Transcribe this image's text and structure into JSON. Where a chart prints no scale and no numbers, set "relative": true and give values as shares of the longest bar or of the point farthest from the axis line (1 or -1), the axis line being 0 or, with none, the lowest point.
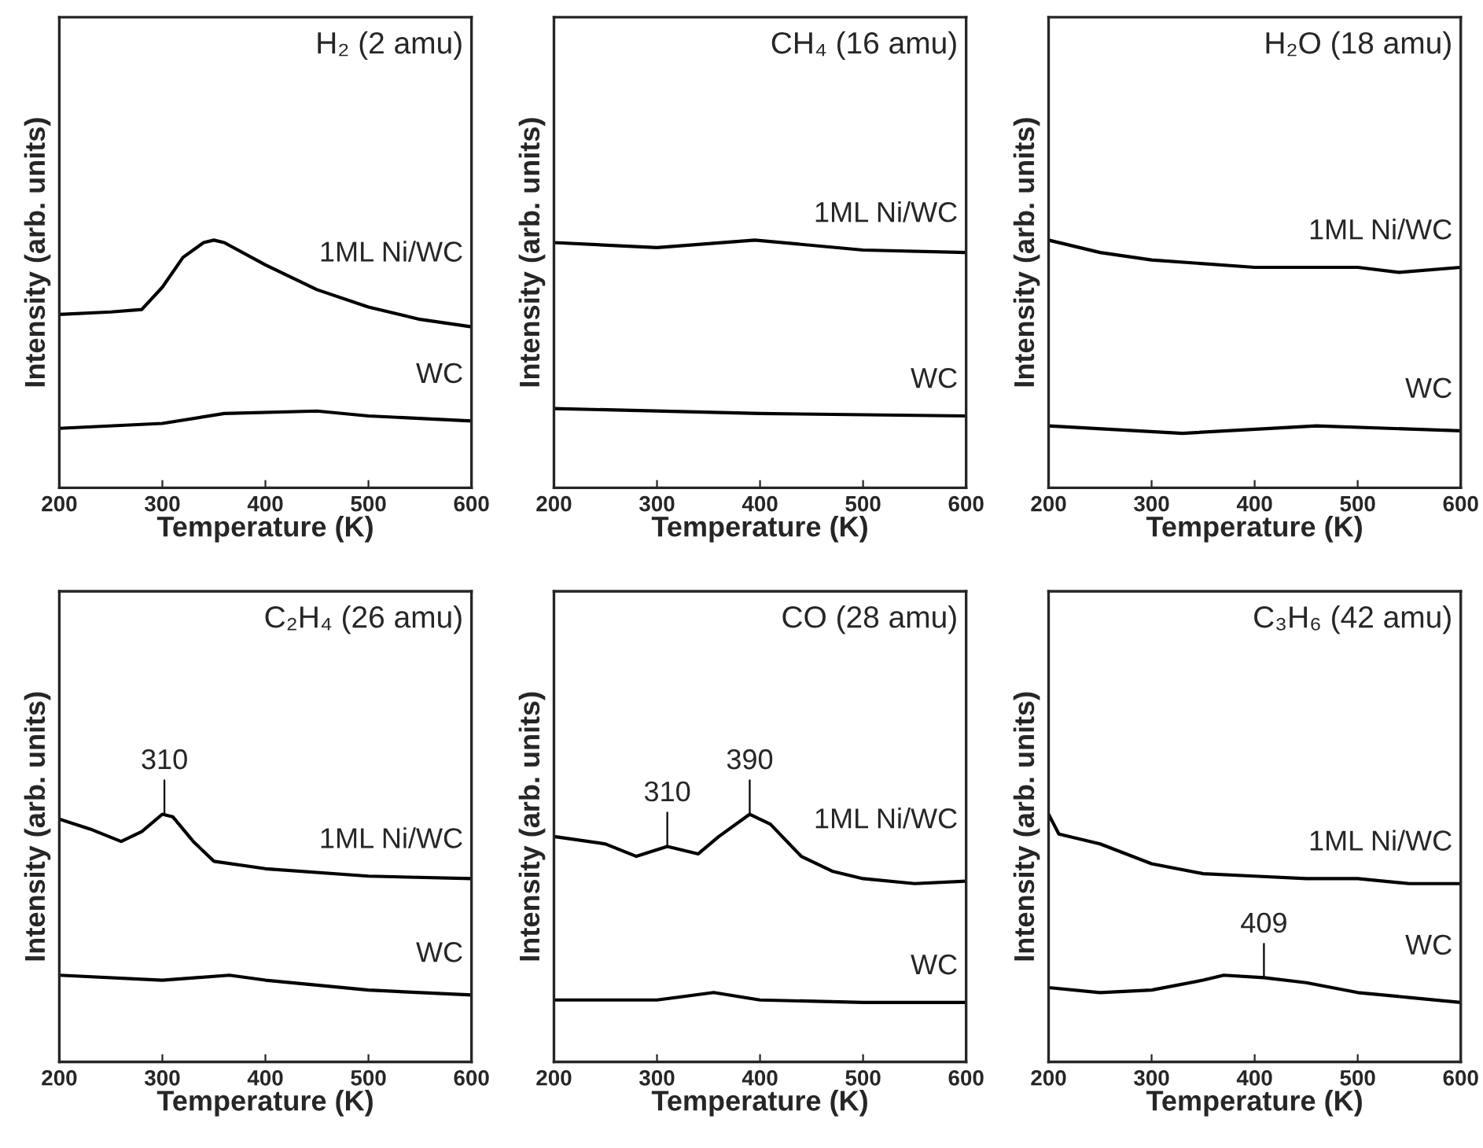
{
  "chart_data": [
    {
      "type": "line",
      "title": "H₂ (2 amu)",
      "xlabel": "Temperature (K)",
      "ylabel": "Intensity (arb. units)",
      "relative": true,
      "tick_labels": "x",
      "legend": false,
      "grid": false,
      "xlim": [
        200,
        600
      ],
      "xticks": [
        200,
        300,
        400,
        500,
        600
      ],
      "series": [
        {
          "name": "1ML Ni/WC",
          "color": "#000000",
          "x": [
            200,
            250,
            280,
            300,
            320,
            340,
            350,
            360,
            400,
            450,
            500,
            550,
            600
          ],
          "values": [
            0.7,
            0.71,
            0.72,
            0.81,
            0.93,
            0.99,
            1.0,
            0.99,
            0.9,
            0.8,
            0.73,
            0.68,
            0.65
          ]
        },
        {
          "name": "WC",
          "color": "#000000",
          "x": [
            200,
            300,
            360,
            450,
            500,
            600
          ],
          "values": [
            0.24,
            0.26,
            0.3,
            0.31,
            0.29,
            0.27
          ]
        }
      ]
    },
    {
      "type": "line",
      "title": "CH₄ (16 amu)",
      "xlabel": "Temperature (K)",
      "ylabel": "Intensity (arb. units)",
      "relative": true,
      "tick_labels": "x",
      "legend": false,
      "grid": false,
      "xlim": [
        200,
        600
      ],
      "xticks": [
        200,
        300,
        400,
        500,
        600
      ],
      "series": [
        {
          "name": "1ML Ni/WC",
          "color": "#000000",
          "x": [
            200,
            300,
            395,
            500,
            600
          ],
          "values": [
            0.99,
            0.97,
            1.0,
            0.96,
            0.95
          ]
        },
        {
          "name": "WC",
          "color": "#000000",
          "x": [
            200,
            400,
            600
          ],
          "values": [
            0.32,
            0.3,
            0.29
          ]
        }
      ]
    },
    {
      "type": "line",
      "title": "H₂O (18 amu)",
      "xlabel": "Temperature (K)",
      "ylabel": "Intensity (arb. units)",
      "relative": true,
      "tick_labels": "x",
      "legend": false,
      "grid": false,
      "xlim": [
        200,
        600
      ],
      "xticks": [
        200,
        300,
        400,
        500,
        600
      ],
      "series": [
        {
          "name": "1ML Ni/WC",
          "color": "#000000",
          "x": [
            200,
            250,
            300,
            400,
            500,
            540,
            600
          ],
          "values": [
            1.0,
            0.95,
            0.92,
            0.89,
            0.89,
            0.87,
            0.89
          ]
        },
        {
          "name": "WC",
          "color": "#000000",
          "x": [
            200,
            330,
            460,
            600
          ],
          "values": [
            0.25,
            0.22,
            0.25,
            0.23
          ]
        }
      ]
    },
    {
      "type": "line",
      "title": "C₂H₄ (26 amu)",
      "xlabel": "Temperature (K)",
      "ylabel": "Intensity (arb. units)",
      "relative": true,
      "tick_labels": "x",
      "legend": false,
      "grid": false,
      "xlim": [
        200,
        600
      ],
      "xticks": [
        200,
        300,
        400,
        500,
        600
      ],
      "annotations": [
        {
          "text": "310",
          "x": 302,
          "y": 1.0
        }
      ],
      "series": [
        {
          "name": "1ML Ni/WC",
          "color": "#000000",
          "x": [
            200,
            230,
            260,
            280,
            300,
            310,
            330,
            350,
            400,
            500,
            600
          ],
          "values": [
            0.98,
            0.94,
            0.89,
            0.93,
            1.0,
            0.99,
            0.89,
            0.81,
            0.78,
            0.75,
            0.74
          ]
        },
        {
          "name": "WC",
          "color": "#000000",
          "x": [
            200,
            300,
            365,
            400,
            500,
            600
          ],
          "values": [
            0.35,
            0.33,
            0.35,
            0.33,
            0.29,
            0.27
          ]
        }
      ]
    },
    {
      "type": "line",
      "title": "CO (28 amu)",
      "xlabel": "Temperature (K)",
      "ylabel": "Intensity (arb. units)",
      "relative": true,
      "tick_labels": "x",
      "legend": false,
      "grid": false,
      "xlim": [
        200,
        600
      ],
      "xticks": [
        200,
        300,
        400,
        500,
        600
      ],
      "annotations": [
        {
          "text": "310",
          "x": 310,
          "y": 0.87
        },
        {
          "text": "390",
          "x": 390,
          "y": 1.0
        }
      ],
      "series": [
        {
          "name": "1ML Ni/WC",
          "color": "#000000",
          "x": [
            200,
            250,
            280,
            310,
            340,
            360,
            390,
            410,
            440,
            470,
            500,
            550,
            600
          ],
          "values": [
            0.91,
            0.88,
            0.83,
            0.87,
            0.84,
            0.91,
            1.0,
            0.96,
            0.83,
            0.77,
            0.74,
            0.72,
            0.73
          ]
        },
        {
          "name": "WC",
          "color": "#000000",
          "x": [
            200,
            300,
            355,
            400,
            500,
            600
          ],
          "values": [
            0.25,
            0.25,
            0.28,
            0.25,
            0.24,
            0.24
          ]
        }
      ]
    },
    {
      "type": "line",
      "title": "C₃H₆ (42 amu)",
      "xlabel": "Temperature (K)",
      "ylabel": "Intensity (arb. units)",
      "relative": true,
      "tick_labels": "x",
      "legend": false,
      "grid": false,
      "xlim": [
        200,
        600
      ],
      "xticks": [
        200,
        300,
        400,
        500,
        600
      ],
      "annotations": [
        {
          "text": "409",
          "x": 409,
          "y": 0.34
        }
      ],
      "series": [
        {
          "name": "1ML Ni/WC",
          "color": "#000000",
          "x": [
            200,
            210,
            250,
            300,
            350,
            400,
            450,
            500,
            550,
            600
          ],
          "values": [
            1.0,
            0.92,
            0.88,
            0.8,
            0.76,
            0.75,
            0.74,
            0.74,
            0.72,
            0.72
          ]
        },
        {
          "name": "WC",
          "color": "#000000",
          "x": [
            200,
            250,
            300,
            350,
            370,
            409,
            450,
            500,
            550,
            600
          ],
          "values": [
            0.3,
            0.28,
            0.29,
            0.33,
            0.35,
            0.34,
            0.32,
            0.28,
            0.26,
            0.24
          ]
        }
      ]
    }
  ]
}
